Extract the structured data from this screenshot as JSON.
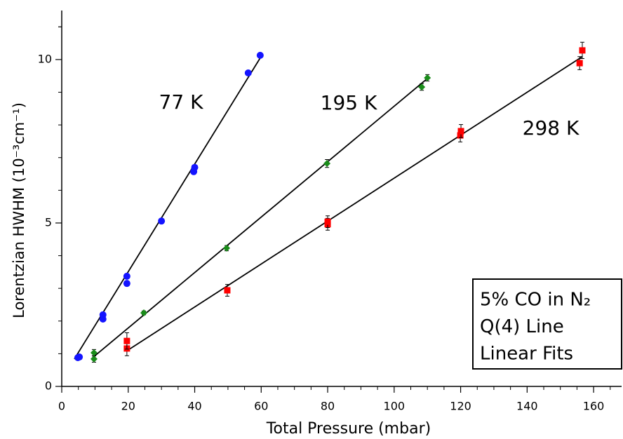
{
  "chart_data": {
    "type": "scatter",
    "x_label": "Total Pressure (mbar)",
    "y_label": "Lorentzian HWHM (10⁻³cm⁻¹)",
    "xlim": [
      0,
      168
    ],
    "ylim": [
      0,
      11.5
    ],
    "xticks": [
      0,
      20,
      40,
      60,
      80,
      100,
      120,
      140,
      160
    ],
    "yticks": [
      0,
      5,
      10
    ],
    "box_lines": [
      "5% CO in N₂",
      "Q(4) Line",
      "Linear Fits"
    ],
    "series": [
      {
        "name": "77 K",
        "color": "#1414ff",
        "marker": "circle",
        "x": [
          4.85,
          5.3,
          12.4,
          12.4,
          19.6,
          19.6,
          30,
          39.7,
          40,
          56.1,
          59.7
        ],
        "values": [
          0.88,
          0.9,
          2.06,
          2.19,
          3.15,
          3.37,
          5.06,
          6.57,
          6.7,
          9.59,
          10.13
        ],
        "fit_x": [
          3.8,
          60.2
        ],
        "fit_values": [
          0.84,
          10.13
        ]
      },
      {
        "name": "195 K",
        "color": "#1a8c1a",
        "marker": "diamond",
        "x": [
          9.7,
          9.7,
          24.7,
          49.6,
          79.8,
          108.3,
          110
        ],
        "values": [
          0.84,
          1.03,
          2.25,
          4.23,
          6.82,
          9.16,
          9.44
        ],
        "errors": [
          0.1,
          0.1,
          0.06,
          0.08,
          0.12,
          0.1,
          0.1
        ],
        "fit_x": [
          9.3,
          110
        ],
        "fit_values": [
          0.88,
          9.42
        ]
      },
      {
        "name": "298 K",
        "color": "#ff0000",
        "marker": "square",
        "x": [
          19.6,
          19.6,
          49.8,
          80,
          80,
          119.9,
          120.1,
          155.8,
          156.6
        ],
        "values": [
          1.16,
          1.39,
          2.94,
          4.96,
          5.04,
          7.68,
          7.81,
          9.89,
          10.28
        ],
        "errors": [
          0.22,
          0.25,
          0.18,
          0.18,
          0.18,
          0.2,
          0.2,
          0.2,
          0.25
        ],
        "fit_x": [
          19.6,
          156.6
        ],
        "fit_values": [
          1.09,
          10.09
        ]
      }
    ]
  }
}
